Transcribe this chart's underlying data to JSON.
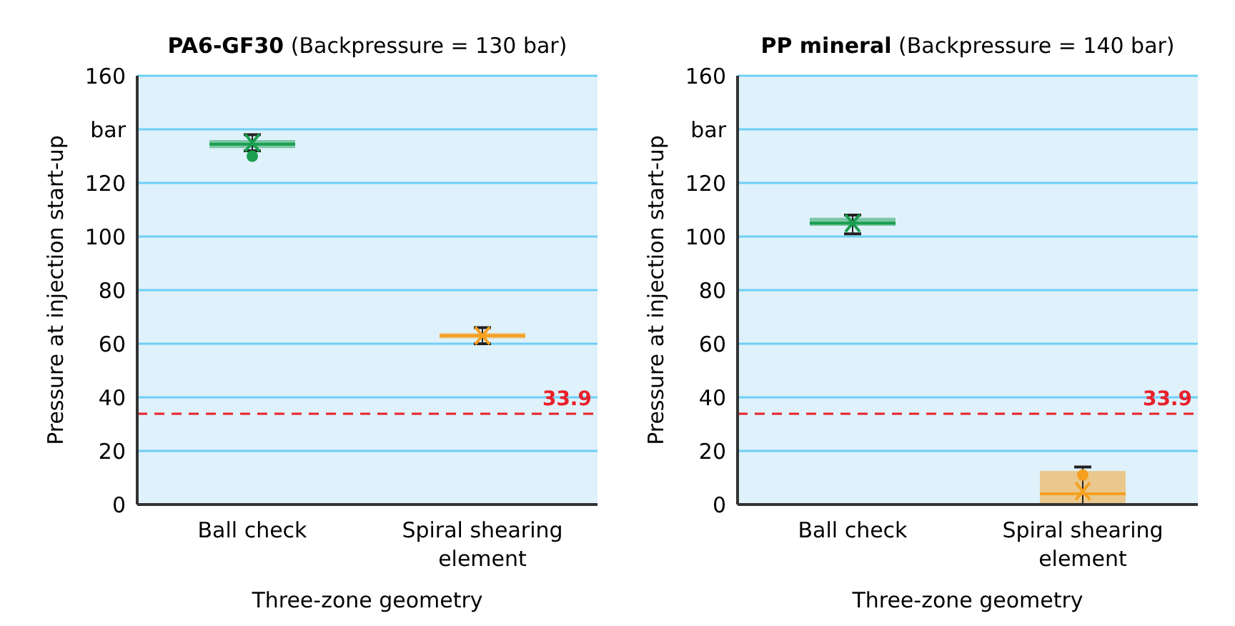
{
  "chart_data": [
    {
      "type": "box",
      "title": "PA6-GF30 (Backpressure = 130 bar)",
      "ylabel": "Pressure at injection start-up",
      "xlabel": "Three-zone geometry",
      "categories": [
        "Ball check",
        "Spiral shearing element"
      ],
      "colors": [
        "#1a9e50",
        "#f5a020"
      ],
      "boxes": [
        {
          "low": 132,
          "q1": 133,
          "median": 134.5,
          "q3": 136,
          "high": 138,
          "mean": 135,
          "outliers": [
            130
          ]
        },
        {
          "low": 60,
          "q1": 62,
          "median": 63,
          "q3": 64,
          "high": 66,
          "mean": 63
        }
      ],
      "ylim": [
        0,
        160
      ],
      "yticks": [
        0,
        20,
        40,
        60,
        80,
        100,
        120,
        {
          "value": 140,
          "label": "bar"
        },
        160
      ],
      "grid": "y",
      "ref_lines": [
        {
          "axis": "y",
          "value": 33.9,
          "label": "33.9",
          "color": "#e8202a",
          "line_style": "dashed"
        }
      ]
    },
    {
      "type": "box",
      "title": "PP mineral (Backpressure = 140 bar)",
      "ylabel": "Pressure at injection start-up",
      "xlabel": "Three-zone geometry",
      "categories": [
        "Ball check",
        "Spiral shearing element"
      ],
      "colors": [
        "#1a9e50",
        "#f5a020"
      ],
      "boxes": [
        {
          "low": 101,
          "q1": 104,
          "median": 105,
          "q3": 107,
          "high": 108,
          "mean": 105
        },
        {
          "low": 0,
          "q1": 0,
          "median": 4,
          "q3": 12.5,
          "high": 14,
          "mean": 5,
          "outliers": [
            11
          ]
        }
      ],
      "ylim": [
        0,
        160
      ],
      "yticks": [
        0,
        20,
        40,
        60,
        80,
        100,
        120,
        {
          "value": 140,
          "label": "bar"
        },
        160
      ],
      "grid": "y",
      "ref_lines": [
        {
          "axis": "y",
          "value": 33.9,
          "label": "33.9",
          "color": "#e8202a",
          "line_style": "dashed"
        }
      ]
    }
  ]
}
